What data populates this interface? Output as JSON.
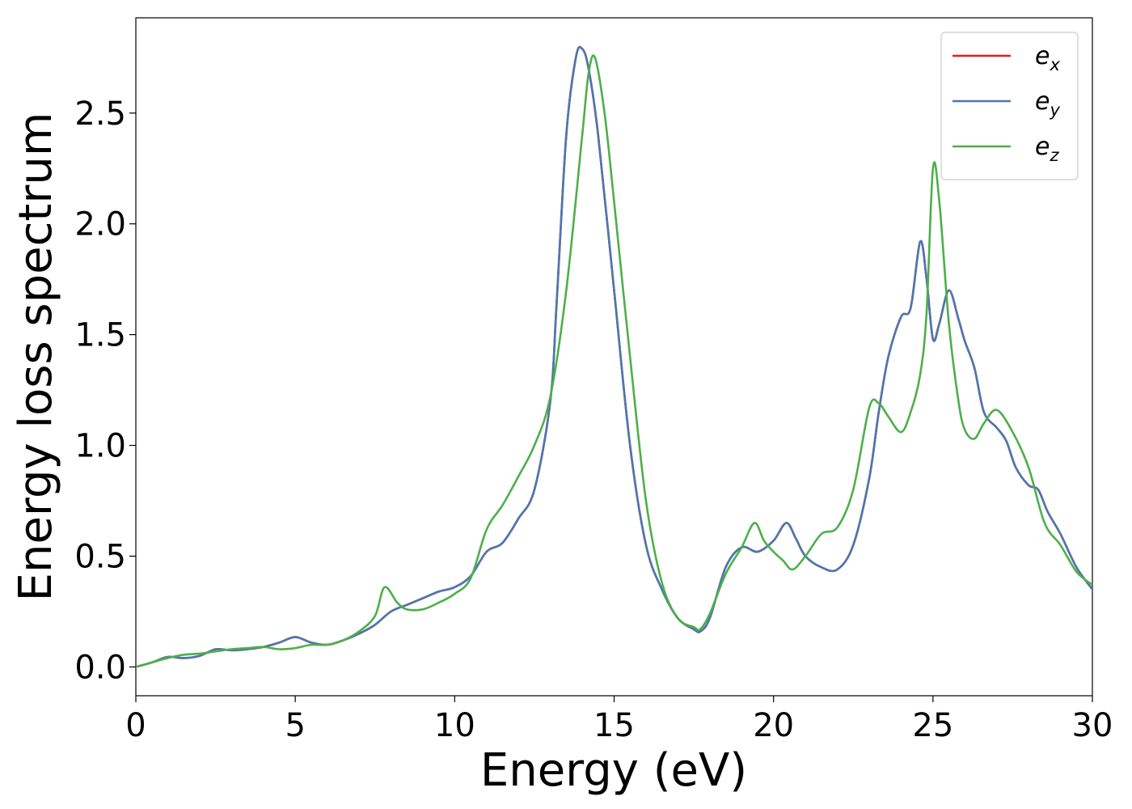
{
  "chart_data": {
    "type": "line",
    "title": "",
    "xlabel": "Energy (eV)",
    "ylabel": "Energy loss spectrum",
    "xlim": [
      0,
      30
    ],
    "ylim": [
      -0.13,
      2.93
    ],
    "xticks": [
      0,
      5,
      10,
      15,
      20,
      25,
      30
    ],
    "xtick_labels": [
      "0",
      "5",
      "10",
      "15",
      "20",
      "25",
      "30"
    ],
    "yticks": [
      0.0,
      0.5,
      1.0,
      1.5,
      2.0,
      2.5
    ],
    "ytick_labels": [
      "0.0",
      "0.5",
      "1.0",
      "1.5",
      "2.0",
      "2.5"
    ],
    "grid": false,
    "legend_position": "top-right",
    "series": [
      {
        "name": "e_x",
        "label_base": "e",
        "label_sub": "x",
        "color": "#e41a1c",
        "x": [
          0,
          0.5,
          1,
          1.5,
          2,
          2.5,
          3,
          3.5,
          4,
          4.5,
          5,
          5.5,
          6,
          6.5,
          7,
          7.5,
          8,
          8.5,
          9,
          9.5,
          10,
          10.5,
          11,
          11.5,
          12,
          12.5,
          13,
          13.2,
          13.5,
          13.8,
          14,
          14.2,
          14.5,
          15,
          15.5,
          16,
          16.5,
          17,
          17.5,
          17.7,
          18,
          18.5,
          19,
          19.5,
          20,
          20.4,
          20.7,
          21,
          21.5,
          22,
          22.5,
          23,
          23.3,
          23.6,
          24,
          24.3,
          24.6,
          24.8,
          25,
          25.2,
          25.5,
          25.8,
          26,
          26.3,
          26.6,
          27,
          27.3,
          27.6,
          28,
          28.3,
          28.6,
          29,
          29.5,
          30
        ],
        "y": [
          0.0,
          0.02,
          0.045,
          0.04,
          0.05,
          0.08,
          0.075,
          0.08,
          0.09,
          0.11,
          0.135,
          0.11,
          0.1,
          0.12,
          0.15,
          0.19,
          0.25,
          0.28,
          0.31,
          0.34,
          0.36,
          0.41,
          0.52,
          0.56,
          0.67,
          0.8,
          1.2,
          1.65,
          2.4,
          2.75,
          2.79,
          2.7,
          2.4,
          1.7,
          1.0,
          0.55,
          0.35,
          0.22,
          0.17,
          0.16,
          0.22,
          0.45,
          0.54,
          0.52,
          0.57,
          0.65,
          0.58,
          0.5,
          0.45,
          0.44,
          0.55,
          0.85,
          1.15,
          1.4,
          1.58,
          1.62,
          1.92,
          1.75,
          1.48,
          1.55,
          1.7,
          1.57,
          1.47,
          1.35,
          1.15,
          1.08,
          1.02,
          0.9,
          0.82,
          0.8,
          0.7,
          0.6,
          0.45,
          0.35
        ]
      },
      {
        "name": "e_y",
        "label_base": "e",
        "label_sub": "y",
        "color": "#4a78b0",
        "x": [
          0,
          0.5,
          1,
          1.5,
          2,
          2.5,
          3,
          3.5,
          4,
          4.5,
          5,
          5.5,
          6,
          6.5,
          7,
          7.5,
          8,
          8.5,
          9,
          9.5,
          10,
          10.5,
          11,
          11.5,
          12,
          12.5,
          13,
          13.2,
          13.5,
          13.8,
          14,
          14.2,
          14.5,
          15,
          15.5,
          16,
          16.5,
          17,
          17.5,
          17.7,
          18,
          18.5,
          19,
          19.5,
          20,
          20.4,
          20.7,
          21,
          21.5,
          22,
          22.5,
          23,
          23.3,
          23.6,
          24,
          24.3,
          24.6,
          24.8,
          25,
          25.2,
          25.5,
          25.8,
          26,
          26.3,
          26.6,
          27,
          27.3,
          27.6,
          28,
          28.3,
          28.6,
          29,
          29.5,
          30
        ],
        "y": [
          0.0,
          0.02,
          0.045,
          0.04,
          0.05,
          0.08,
          0.075,
          0.08,
          0.09,
          0.11,
          0.135,
          0.11,
          0.1,
          0.12,
          0.15,
          0.19,
          0.25,
          0.28,
          0.31,
          0.34,
          0.36,
          0.41,
          0.52,
          0.56,
          0.67,
          0.8,
          1.2,
          1.65,
          2.4,
          2.75,
          2.79,
          2.7,
          2.4,
          1.7,
          1.0,
          0.55,
          0.35,
          0.22,
          0.17,
          0.16,
          0.22,
          0.45,
          0.54,
          0.52,
          0.57,
          0.65,
          0.58,
          0.5,
          0.45,
          0.44,
          0.55,
          0.85,
          1.15,
          1.4,
          1.58,
          1.62,
          1.92,
          1.75,
          1.48,
          1.55,
          1.7,
          1.57,
          1.47,
          1.35,
          1.15,
          1.08,
          1.02,
          0.9,
          0.82,
          0.8,
          0.7,
          0.6,
          0.45,
          0.35
        ]
      },
      {
        "name": "e_z",
        "label_base": "e",
        "label_sub": "z",
        "color": "#4daf4a",
        "x": [
          0,
          0.5,
          1,
          1.5,
          2,
          2.5,
          3,
          3.5,
          4,
          4.5,
          5,
          5.5,
          6,
          6.5,
          7,
          7.5,
          7.8,
          8.2,
          8.5,
          9,
          9.5,
          10,
          10.5,
          11,
          11.5,
          12,
          12.5,
          13,
          13.5,
          14,
          14.2,
          14.4,
          14.7,
          15,
          15.5,
          16,
          16.5,
          17,
          17.5,
          17.7,
          18,
          18.5,
          19,
          19.4,
          19.7,
          20,
          20.3,
          20.6,
          21,
          21.5,
          22,
          22.5,
          23,
          23.3,
          23.6,
          24,
          24.3,
          24.6,
          24.8,
          25,
          25.2,
          25.5,
          25.8,
          26,
          26.3,
          26.6,
          27,
          27.5,
          28,
          28.5,
          29,
          29.5,
          30
        ],
        "y": [
          0.0,
          0.02,
          0.04,
          0.055,
          0.06,
          0.07,
          0.08,
          0.085,
          0.09,
          0.08,
          0.085,
          0.1,
          0.1,
          0.12,
          0.16,
          0.23,
          0.36,
          0.29,
          0.26,
          0.26,
          0.29,
          0.33,
          0.4,
          0.62,
          0.73,
          0.86,
          1.0,
          1.22,
          1.7,
          2.4,
          2.68,
          2.75,
          2.5,
          2.1,
          1.4,
          0.75,
          0.38,
          0.22,
          0.18,
          0.17,
          0.24,
          0.42,
          0.54,
          0.65,
          0.57,
          0.52,
          0.48,
          0.44,
          0.5,
          0.6,
          0.63,
          0.8,
          1.17,
          1.19,
          1.13,
          1.06,
          1.15,
          1.32,
          1.6,
          2.25,
          2.1,
          1.55,
          1.2,
          1.07,
          1.03,
          1.1,
          1.16,
          1.06,
          0.9,
          0.65,
          0.55,
          0.43,
          0.37
        ]
      }
    ]
  }
}
